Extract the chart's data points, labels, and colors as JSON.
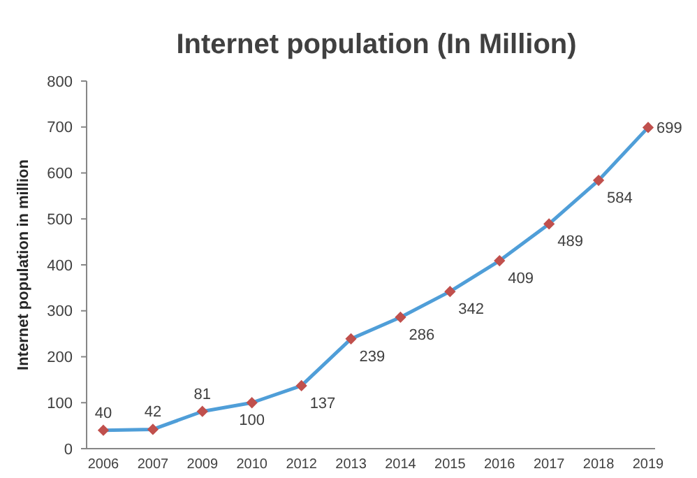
{
  "chart_data": {
    "type": "line",
    "title": "Internet population (In Million)",
    "ylabel": "Internet population in million",
    "categories": [
      "2006",
      "2007",
      "2009",
      "2010",
      "2012",
      "2013",
      "2014",
      "2015",
      "2016",
      "2017",
      "2018",
      "2019"
    ],
    "series": [
      {
        "color": "#4f9ed8",
        "values": [
          40,
          42,
          81,
          100,
          137,
          239,
          286,
          342,
          409,
          489,
          584,
          699
        ]
      }
    ],
    "ylim": [
      0,
      800
    ],
    "yticks": [
      0,
      100,
      200,
      300,
      400,
      500,
      600,
      700,
      800
    ],
    "grid": false,
    "marker": "diamond",
    "line_style": "solid",
    "data_labels": true
  }
}
